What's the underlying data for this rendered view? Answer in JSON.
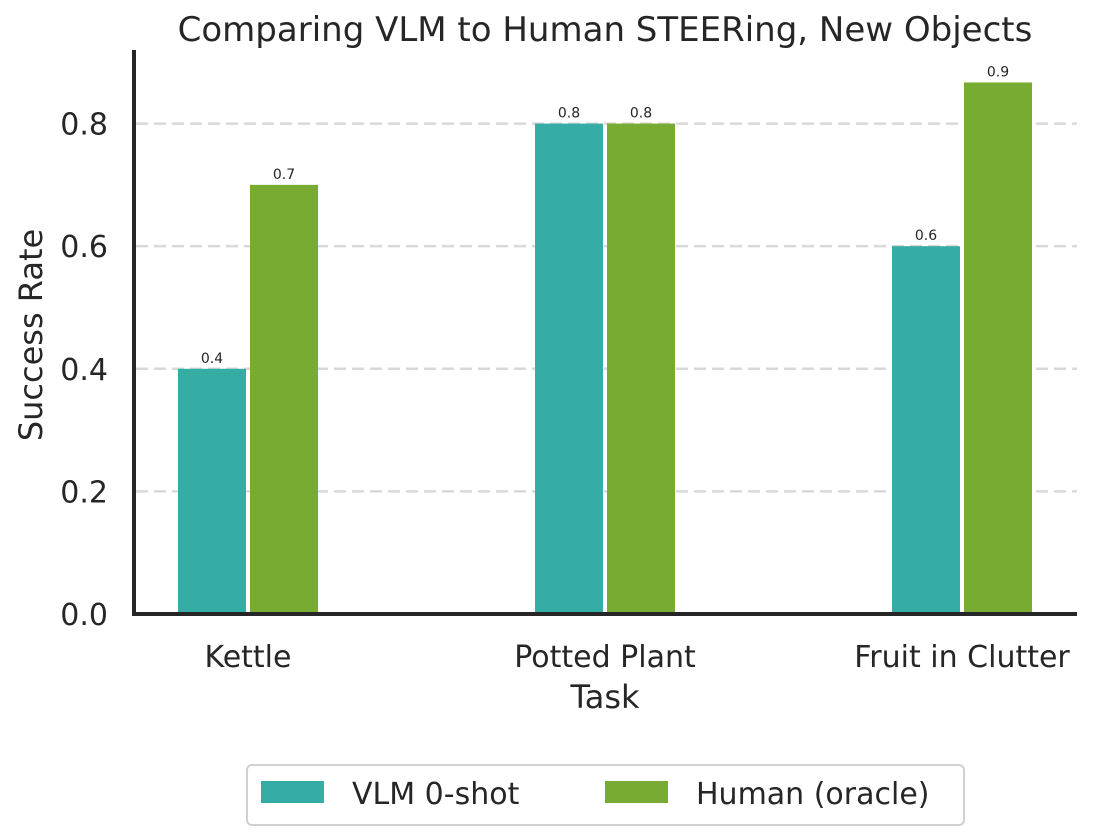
{
  "chart_data": {
    "type": "bar",
    "title": "Comparing VLM to Human STEERing, New Objects",
    "xlabel": "Task",
    "ylabel": "Success Rate",
    "categories": [
      "Kettle",
      "Potted Plant",
      "Fruit in Clutter"
    ],
    "series": [
      {
        "name": "VLM 0-shot",
        "color": "#36ada4",
        "values": [
          0.4,
          0.8,
          0.6
        ],
        "labels": [
          "0.4",
          "0.8",
          "0.6"
        ]
      },
      {
        "name": "Human (oracle)",
        "color": "#77ab31",
        "values": [
          0.7,
          0.8,
          0.867
        ],
        "labels": [
          "0.7",
          "0.8",
          "0.9"
        ]
      }
    ],
    "ylim": [
      0,
      0.92
    ],
    "yticks": [
      "0.0",
      "0.2",
      "0.4",
      "0.6",
      "0.8"
    ],
    "grid": true,
    "legend_position": "bottom-center"
  }
}
